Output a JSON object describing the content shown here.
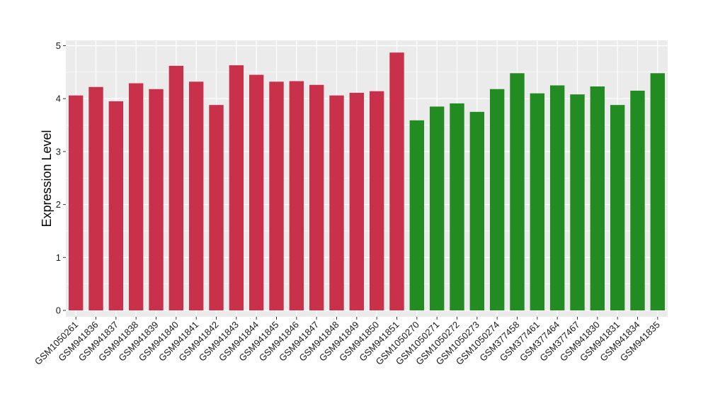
{
  "chart_data": {
    "type": "bar",
    "ylabel": "Expression Level",
    "xlabel": "",
    "ylim": [
      -0.12,
      5.1
    ],
    "yticks": [
      0,
      1,
      2,
      3,
      4,
      5
    ],
    "grid": true,
    "background": "#ebebeb",
    "categories": [
      "GSM1050261",
      "GSM941836",
      "GSM941837",
      "GSM941838",
      "GSM941839",
      "GSM941840",
      "GSM941841",
      "GSM941842",
      "GSM941843",
      "GSM941844",
      "GSM941845",
      "GSM941846",
      "GSM941847",
      "GSM941848",
      "GSM941849",
      "GSM941850",
      "GSM941851",
      "GSM1050270",
      "GSM1050271",
      "GSM1050272",
      "GSM1050273",
      "GSM1050274",
      "GSM377458",
      "GSM377461",
      "GSM377464",
      "GSM377467",
      "GSM941830",
      "GSM941831",
      "GSM941834",
      "GSM941835"
    ],
    "values": [
      4.06,
      4.22,
      3.95,
      4.29,
      4.18,
      4.62,
      4.32,
      3.88,
      4.63,
      4.45,
      4.32,
      4.33,
      4.26,
      4.06,
      4.11,
      4.14,
      4.87,
      3.59,
      3.85,
      3.91,
      3.75,
      4.18,
      4.48,
      4.1,
      4.25,
      4.08,
      4.23,
      3.88,
      4.15,
      4.48
    ],
    "groups": [
      {
        "count": 17,
        "color": "#c9314a"
      },
      {
        "count": 13,
        "color": "#228b22"
      }
    ]
  }
}
